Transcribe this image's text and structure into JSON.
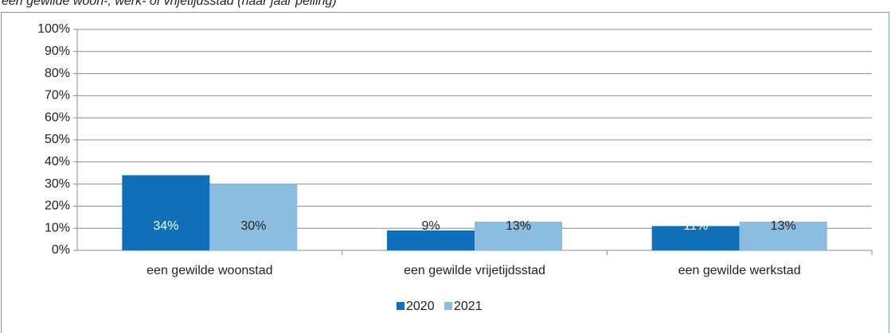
{
  "chart_data": {
    "type": "bar",
    "title": "een gewilde woon-, werk- of vrijetijdsstad (naar jaar peiling)",
    "categories": [
      "een gewilde woonstad",
      "een gewilde vrijetijdsstad",
      "een gewilde werkstad"
    ],
    "series": [
      {
        "name": "2020",
        "color": "#0f6fb8",
        "values": [
          34,
          9,
          11
        ],
        "value_labels": [
          "34%",
          "9%",
          "11%"
        ]
      },
      {
        "name": "2021",
        "color": "#8abde0",
        "values": [
          30,
          13,
          13
        ],
        "value_labels": [
          "30%",
          "13%",
          "13%"
        ]
      }
    ],
    "ylim": [
      0,
      100
    ],
    "yticks": [
      {
        "value": 0,
        "label": "0%"
      },
      {
        "value": 10,
        "label": "10%"
      },
      {
        "value": 20,
        "label": "20%"
      },
      {
        "value": 30,
        "label": "30%"
      },
      {
        "value": 40,
        "label": "40%"
      },
      {
        "value": 50,
        "label": "50%"
      },
      {
        "value": 60,
        "label": "60%"
      },
      {
        "value": 70,
        "label": "70%"
      },
      {
        "value": 80,
        "label": "80%"
      },
      {
        "value": 90,
        "label": "90%"
      },
      {
        "value": 100,
        "label": "100%"
      }
    ],
    "grid": true,
    "legend": "bottom"
  }
}
